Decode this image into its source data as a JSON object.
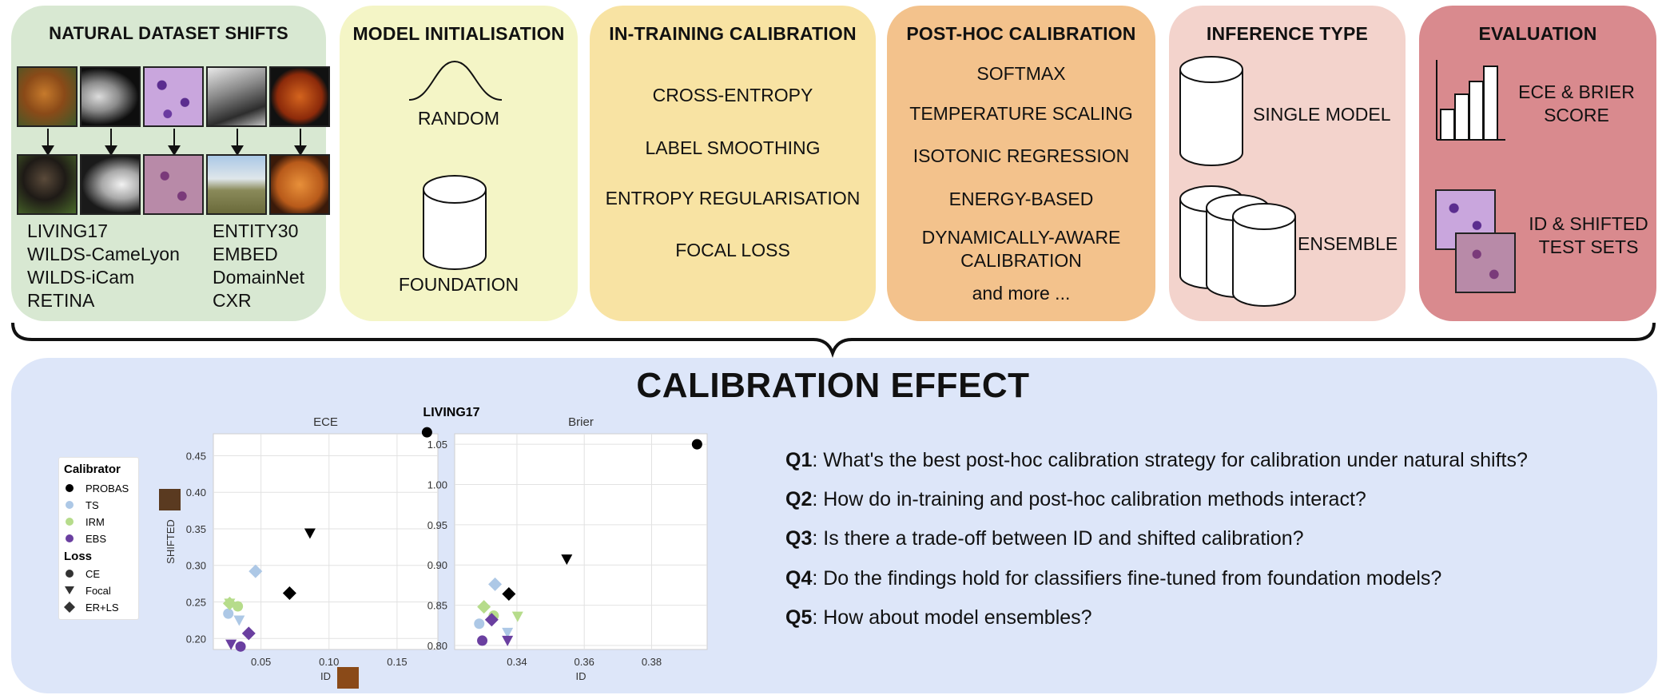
{
  "panels": {
    "shifts": {
      "title": "NATURAL DATASET SHIFTS",
      "datasets_left": [
        "LIVING17",
        "WILDS-CameLyon",
        "WILDS-iCam",
        "RETINA"
      ],
      "datasets_right": [
        "ENTITY30",
        "EMBED",
        "DomainNet",
        "CXR"
      ]
    },
    "init": {
      "title": "MODEL INITIALISATION",
      "random": "RANDOM",
      "foundation": "FOUNDATION"
    },
    "intraining": {
      "title": "IN-TRAINING CALIBRATION",
      "items": [
        "CROSS-ENTROPY",
        "LABEL SMOOTHING",
        "ENTROPY REGULARISATION",
        "FOCAL LOSS"
      ]
    },
    "posthoc": {
      "title": "POST-HOC CALIBRATION",
      "items": [
        "SOFTMAX",
        "TEMPERATURE SCALING",
        "ISOTONIC REGRESSION",
        "ENERGY-BASED",
        "DYNAMICALLY-AWARE",
        "CALIBRATION",
        "and more ..."
      ]
    },
    "inference": {
      "title": "INFERENCE TYPE",
      "single": "SINGLE MODEL",
      "ensemble": "ENSEMBLE"
    },
    "evaluation": {
      "title": "EVALUATION",
      "metric_line1": "ECE & BRIER",
      "metric_line2": "SCORE",
      "sets_line1": "ID & SHIFTED",
      "sets_line2": "TEST SETS"
    }
  },
  "effect": {
    "title": "CALIBRATION EFFECT"
  },
  "questions": [
    {
      "id": "Q1",
      "text": ": What's the best post-hoc calibration strategy for calibration under natural shifts?"
    },
    {
      "id": "Q2",
      "text": ": How do in-training and post-hoc calibration methods interact?"
    },
    {
      "id": "Q3",
      "text": ": Is there a trade-off between ID and shifted calibration?"
    },
    {
      "id": "Q4",
      "text": ": Do the findings hold for classifiers fine-tuned from foundation models?"
    },
    {
      "id": "Q5",
      "text": ": How about model ensembles?"
    }
  ],
  "legend": {
    "calibrator_title": "Calibrator",
    "calibrators": [
      {
        "name": "PROBAS",
        "color": "#000000"
      },
      {
        "name": "TS",
        "color": "#adc8e6"
      },
      {
        "name": "IRM",
        "color": "#b6dc8b"
      },
      {
        "name": "EBS",
        "color": "#6a3fa0"
      }
    ],
    "loss_title": "Loss",
    "losses": [
      {
        "name": "CE",
        "marker": "circle"
      },
      {
        "name": "Focal",
        "marker": "triangle"
      },
      {
        "name": "ER+LS",
        "marker": "diamond"
      }
    ]
  },
  "chart_data": [
    {
      "type": "scatter",
      "suptitle": "LIVING17",
      "title": "ECE",
      "xlabel": "ID",
      "ylabel": "SHIFTED",
      "xlim": [
        0.015,
        0.18
      ],
      "ylim": [
        0.185,
        0.48
      ],
      "xticks": [
        0.05,
        0.1,
        0.15
      ],
      "yticks": [
        0.2,
        0.25,
        0.3,
        0.35,
        0.4,
        0.45
      ],
      "xtick_labels": [
        "0.05",
        "0.10",
        "0.15"
      ],
      "ytick_labels": [
        "0.20",
        "0.25",
        "0.30",
        "0.35",
        "0.40",
        "0.45"
      ],
      "points": [
        {
          "calibrator": "PROBAS",
          "loss": "CE",
          "x": 0.172,
          "y": 0.482
        },
        {
          "calibrator": "PROBAS",
          "loss": "Focal",
          "x": 0.086,
          "y": 0.345
        },
        {
          "calibrator": "PROBAS",
          "loss": "ER+LS",
          "x": 0.071,
          "y": 0.262
        },
        {
          "calibrator": "TS",
          "loss": "CE",
          "x": 0.026,
          "y": 0.234
        },
        {
          "calibrator": "TS",
          "loss": "Focal",
          "x": 0.034,
          "y": 0.226
        },
        {
          "calibrator": "TS",
          "loss": "ER+LS",
          "x": 0.046,
          "y": 0.292
        },
        {
          "calibrator": "IRM",
          "loss": "CE",
          "x": 0.033,
          "y": 0.244
        },
        {
          "calibrator": "IRM",
          "loss": "Focal",
          "x": 0.027,
          "y": 0.249
        },
        {
          "calibrator": "IRM",
          "loss": "ER+LS",
          "x": 0.027,
          "y": 0.248
        },
        {
          "calibrator": "EBS",
          "loss": "CE",
          "x": 0.035,
          "y": 0.189
        },
        {
          "calibrator": "EBS",
          "loss": "Focal",
          "x": 0.028,
          "y": 0.193
        },
        {
          "calibrator": "EBS",
          "loss": "ER+LS",
          "x": 0.041,
          "y": 0.207
        }
      ]
    },
    {
      "type": "scatter",
      "title": "Brier",
      "xlabel": "ID",
      "ylabel": "",
      "xlim": [
        0.3215,
        0.3965
      ],
      "ylim": [
        0.795,
        1.063
      ],
      "xticks": [
        0.34,
        0.36,
        0.38
      ],
      "yticks": [
        0.8,
        0.85,
        0.9,
        0.95,
        1.0,
        1.05
      ],
      "xtick_labels": [
        "0.34",
        "0.36",
        "0.38"
      ],
      "ytick_labels": [
        "0.80",
        "0.85",
        "0.90",
        "0.95",
        "1.00",
        "1.05"
      ],
      "points": [
        {
          "calibrator": "PROBAS",
          "loss": "CE",
          "x": 0.3935,
          "y": 1.05
        },
        {
          "calibrator": "PROBAS",
          "loss": "Focal",
          "x": 0.3548,
          "y": 0.908
        },
        {
          "calibrator": "PROBAS",
          "loss": "ER+LS",
          "x": 0.3376,
          "y": 0.864
        },
        {
          "calibrator": "TS",
          "loss": "CE",
          "x": 0.3288,
          "y": 0.827
        },
        {
          "calibrator": "TS",
          "loss": "Focal",
          "x": 0.3372,
          "y": 0.817
        },
        {
          "calibrator": "TS",
          "loss": "ER+LS",
          "x": 0.3335,
          "y": 0.876
        },
        {
          "calibrator": "IRM",
          "loss": "CE",
          "x": 0.3331,
          "y": 0.837
        },
        {
          "calibrator": "IRM",
          "loss": "Focal",
          "x": 0.3402,
          "y": 0.837
        },
        {
          "calibrator": "IRM",
          "loss": "ER+LS",
          "x": 0.3302,
          "y": 0.848
        },
        {
          "calibrator": "EBS",
          "loss": "CE",
          "x": 0.3297,
          "y": 0.806
        },
        {
          "calibrator": "EBS",
          "loss": "Focal",
          "x": 0.3372,
          "y": 0.807
        },
        {
          "calibrator": "EBS",
          "loss": "ER+LS",
          "x": 0.3325,
          "y": 0.832
        }
      ]
    }
  ]
}
